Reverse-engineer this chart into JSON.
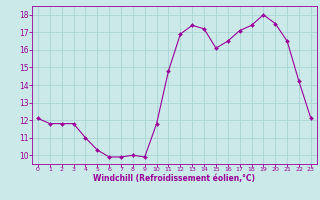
{
  "x": [
    0,
    1,
    2,
    3,
    4,
    5,
    6,
    7,
    8,
    9,
    10,
    11,
    12,
    13,
    14,
    15,
    16,
    17,
    18,
    19,
    20,
    21,
    22,
    23
  ],
  "y": [
    12.1,
    11.8,
    11.8,
    11.8,
    11.0,
    10.3,
    9.9,
    9.9,
    10.0,
    9.9,
    11.8,
    14.8,
    16.9,
    17.4,
    17.2,
    16.1,
    16.5,
    17.1,
    17.4,
    18.0,
    17.5,
    16.5,
    14.2,
    12.1
  ],
  "line_color": "#990099",
  "marker": "D",
  "marker_size": 2,
  "bg_color": "#cce9e9",
  "grid_color": "#aad4d4",
  "xlabel": "Windchill (Refroidissement éolien,°C)",
  "xlabel_color": "#990099",
  "tick_color": "#990099",
  "ylim": [
    9.5,
    18.5
  ],
  "yticks": [
    10,
    11,
    12,
    13,
    14,
    15,
    16,
    17,
    18
  ],
  "xlim": [
    -0.5,
    23.5
  ],
  "xticks": [
    0,
    1,
    2,
    3,
    4,
    5,
    6,
    7,
    8,
    9,
    10,
    11,
    12,
    13,
    14,
    15,
    16,
    17,
    18,
    19,
    20,
    21,
    22,
    23
  ]
}
